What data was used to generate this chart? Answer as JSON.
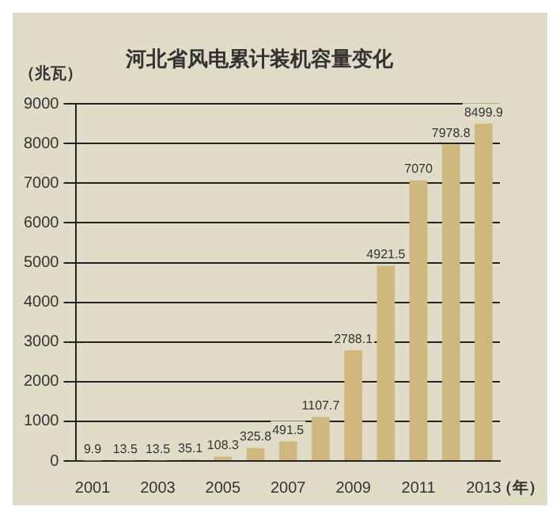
{
  "chart_data": {
    "type": "bar",
    "title": "河北省风电累计装机容量变化",
    "ylabel": "（兆瓦）",
    "xlabel": "（年）",
    "categories": [
      "2001",
      null,
      "2003",
      null,
      "2005",
      null,
      "2007",
      null,
      "2009",
      null,
      "2011",
      null,
      "2013"
    ],
    "values": [
      9.9,
      13.5,
      13.5,
      35.1,
      108.3,
      325.8,
      491.5,
      1107.7,
      2788.1,
      4921.5,
      7070,
      7978.8,
      8499.9
    ],
    "color": "#cfb77e",
    "ylim": [
      0,
      9000
    ],
    "yticks": [
      0,
      1000,
      2000,
      3000,
      4000,
      5000,
      6000,
      7000,
      8000,
      9000
    ],
    "grid": "y",
    "data_labels": true,
    "legend": false
  }
}
